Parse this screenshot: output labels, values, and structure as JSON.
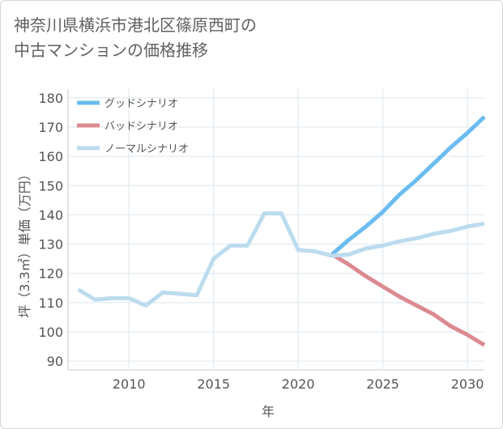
{
  "chart_data": {
    "type": "line",
    "title_lines": [
      "神奈川県横浜市港北区篠原西町の",
      "中古マンションの価格推移"
    ],
    "xlabel": "年",
    "ylabel": "坪（3.3㎡）単価（万円）",
    "xlim": [
      2006.4,
      2031
    ],
    "ylim": [
      87,
      183
    ],
    "x_ticks": [
      2010,
      2015,
      2020,
      2025,
      2030
    ],
    "y_ticks": [
      90,
      100,
      110,
      120,
      130,
      140,
      150,
      160,
      170,
      180
    ],
    "grid": true,
    "legend_position": "top-left",
    "series": [
      {
        "name": "グッドシナリオ",
        "color": "#6bbcef",
        "x": [
          2022,
          2023,
          2024,
          2025,
          2026,
          2027,
          2028,
          2029,
          2030,
          2031
        ],
        "values": [
          126.5,
          131.5,
          136.0,
          141.0,
          147.0,
          152.0,
          157.5,
          163.0,
          168.0,
          173.5
        ]
      },
      {
        "name": "バッドシナリオ",
        "color": "#dc8a92",
        "x": [
          2022,
          2023,
          2024,
          2025,
          2026,
          2027,
          2028,
          2029,
          2030,
          2031
        ],
        "values": [
          126.5,
          123.0,
          119.0,
          115.5,
          112.0,
          109.0,
          106.0,
          102.0,
          99.0,
          95.5
        ]
      },
      {
        "name": "ノーマルシナリオ",
        "color": "#bcdcee",
        "x": [
          2007,
          2008,
          2009,
          2010,
          2011,
          2012,
          2013,
          2014,
          2015,
          2016,
          2017,
          2018,
          2019,
          2020,
          2021,
          2022,
          2023,
          2024,
          2025,
          2026,
          2027,
          2028,
          2029,
          2030,
          2031
        ],
        "values": [
          114.5,
          111.0,
          111.5,
          111.5,
          109.0,
          113.5,
          113.0,
          112.5,
          125.0,
          129.5,
          129.5,
          140.5,
          140.5,
          128.0,
          127.5,
          126.0,
          126.5,
          128.5,
          129.5,
          131.0,
          132.0,
          133.5,
          134.5,
          136.0,
          137.0
        ]
      }
    ]
  }
}
